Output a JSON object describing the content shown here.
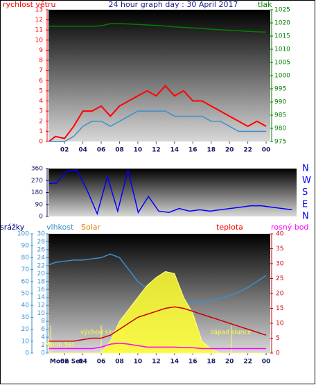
{
  "chart_data": [
    {
      "type": "line",
      "title": "24 hour graph day : 30 April 2017",
      "ylabel": "rychlost větru",
      "y2label": "tlak",
      "x": [
        0.3,
        1,
        2,
        3,
        4,
        5,
        6,
        7,
        8,
        9,
        10,
        11,
        12,
        13,
        14,
        15,
        16,
        17,
        18,
        19,
        20,
        21,
        22,
        23,
        24
      ],
      "xlim": [
        0.25,
        24.45
      ],
      "xticks": [
        {
          "value": 2,
          "label": "02"
        },
        {
          "value": 4,
          "label": "04"
        },
        {
          "value": 6,
          "label": "06"
        },
        {
          "value": 8,
          "label": "08"
        },
        10,
        12,
        14,
        16,
        18,
        20,
        22,
        {
          "value": 24,
          "label": "00"
        }
      ],
      "ylim": [
        0,
        13
      ],
      "yticks": [
        0,
        1,
        2,
        3,
        4,
        5,
        6,
        7,
        8,
        9,
        10,
        11,
        12,
        13
      ],
      "y2lim": [
        975,
        1025
      ],
      "y2ticks": [
        975,
        980,
        985,
        990,
        995,
        1000,
        1005,
        1010,
        1015,
        1020,
        1025
      ],
      "series": [
        {
          "color": "#ff0000",
          "values": [
            0,
            0.5,
            0.3,
            1.5,
            3,
            3,
            3.5,
            2.5,
            3.5,
            4,
            4.5,
            5,
            4.5,
            5.5,
            4.5,
            5,
            4,
            4,
            3.5,
            3,
            2.5,
            2,
            1.5,
            2,
            1.5
          ]
        },
        {
          "color": "#3a8fd0",
          "values": [
            0,
            0,
            0,
            0.5,
            1.5,
            2,
            2,
            1.5,
            2,
            2.5,
            3,
            3,
            3,
            3,
            2.5,
            2.5,
            2.5,
            2.5,
            2,
            2,
            1.5,
            1,
            1,
            1,
            1
          ]
        },
        {
          "color": "#008000",
          "axis": "y2",
          "values": [
            1018.7,
            1018.7,
            1018.7,
            1018.7,
            1018.7,
            1018.7,
            1018.9,
            1019.7,
            1019.7,
            1019.6,
            1019.4,
            1019.2,
            1019,
            1018.8,
            1018.5,
            1018.3,
            1018.1,
            1017.9,
            1017.6,
            1017.4,
            1017.2,
            1017,
            1016.8,
            1016.6,
            1016.5
          ]
        }
      ]
    },
    {
      "type": "line",
      "x": [
        0.3,
        1,
        2,
        3,
        4,
        5,
        6,
        7,
        8,
        9,
        10,
        11,
        12,
        13,
        14,
        15,
        16,
        17,
        18,
        19,
        20,
        21,
        22,
        23,
        24
      ],
      "xlim": [
        0.25,
        24.45
      ],
      "ylim": [
        0,
        360
      ],
      "yticks": [
        0,
        90,
        180,
        270,
        360
      ],
      "y2lim": [
        0,
        360
      ],
      "y2ticks": [
        {
          "value": 0,
          "label": "N"
        },
        {
          "value": 90,
          "label": "E"
        },
        {
          "value": 180,
          "label": "S"
        },
        {
          "value": 270,
          "label": "W"
        },
        {
          "value": 360,
          "label": "N"
        }
      ],
      "series": [
        {
          "color": "#0000ff",
          "values": [
            250,
            250,
            340,
            350,
            200,
            20,
            300,
            40,
            350,
            30,
            150,
            40,
            30,
            60,
            40,
            50,
            40,
            50,
            60,
            70,
            80,
            80,
            70,
            60,
            50
          ]
        }
      ]
    },
    {
      "type": "line",
      "ylabel": "srážky",
      "y2label": "teplota",
      "x": [
        0.3,
        1,
        2,
        3,
        4,
        5,
        6,
        7,
        8,
        9,
        10,
        11,
        12,
        13,
        14,
        15,
        16,
        17,
        18,
        19,
        20,
        21,
        22,
        23,
        24
      ],
      "xlim": [
        0.25,
        24.45
      ],
      "xticks": [
        {
          "value": 2,
          "label": "02"
        },
        {
          "value": 4,
          "label": "04"
        },
        {
          "value": 6,
          "label": "06"
        },
        {
          "value": 8,
          "label": "08"
        },
        10,
        12,
        14,
        16,
        18,
        20,
        22,
        {
          "value": 24,
          "label": "00"
        }
      ],
      "ylim": [
        0,
        100
      ],
      "yticks": [
        0,
        10,
        20,
        30,
        40,
        50,
        60,
        70,
        80,
        90,
        100
      ],
      "y3lim": [
        0,
        30
      ],
      "y3ticks": [
        0,
        2,
        4,
        6,
        8,
        10,
        12,
        14,
        16,
        18,
        20,
        22,
        24,
        26,
        28,
        30
      ],
      "y2lim": [
        0,
        40
      ],
      "y2ticks": [
        0,
        5,
        10,
        15,
        20,
        25,
        30,
        35,
        40
      ],
      "series": [
        {
          "name": "vlhkost",
          "color": "#3a8fd0",
          "values": [
            74,
            76,
            77,
            78,
            78,
            79,
            80,
            83,
            80,
            70,
            60,
            54,
            48,
            45,
            43,
            42,
            42,
            43,
            44,
            46,
            48,
            51,
            55,
            60,
            65
          ]
        },
        {
          "name": "Solar",
          "color": "#ffff30",
          "label_color": "#e08000",
          "type": "area",
          "axis": "y3",
          "values": [
            0,
            0,
            0,
            0,
            0,
            0,
            0,
            3,
            8,
            11,
            14,
            17,
            19,
            20.5,
            20,
            14,
            10,
            3,
            1,
            0,
            0,
            0,
            0,
            0,
            0
          ]
        },
        {
          "name": "teplota",
          "color": "#cc0000",
          "label_color": "#ff0000",
          "axis": "y2",
          "values": [
            4,
            4,
            4,
            4,
            4.5,
            5,
            5,
            6,
            8,
            10,
            12,
            13,
            14,
            15,
            15.5,
            15,
            14,
            13,
            12,
            11,
            10,
            9,
            8,
            7,
            6
          ]
        },
        {
          "name": "rosný bod",
          "color": "#ff00ff",
          "axis": "y2",
          "values": [
            1.5,
            1.5,
            1.5,
            1.5,
            1.5,
            1.5,
            2,
            3,
            3.3,
            3,
            2.5,
            2,
            2,
            2,
            2,
            1.8,
            1.8,
            1.5,
            1.5,
            1.5,
            1.5,
            1.5,
            1.5,
            1.5,
            1.5
          ]
        }
      ],
      "annotations": [
        {
          "text": "východ slunce",
          "x": 6
        },
        {
          "text": "západ slunce",
          "x": 20.2
        },
        {
          "text": "Moon Set",
          "x": 0.5
        },
        {
          "text": "Moon Set",
          "x": 1,
          "place": "bottom"
        }
      ]
    }
  ]
}
